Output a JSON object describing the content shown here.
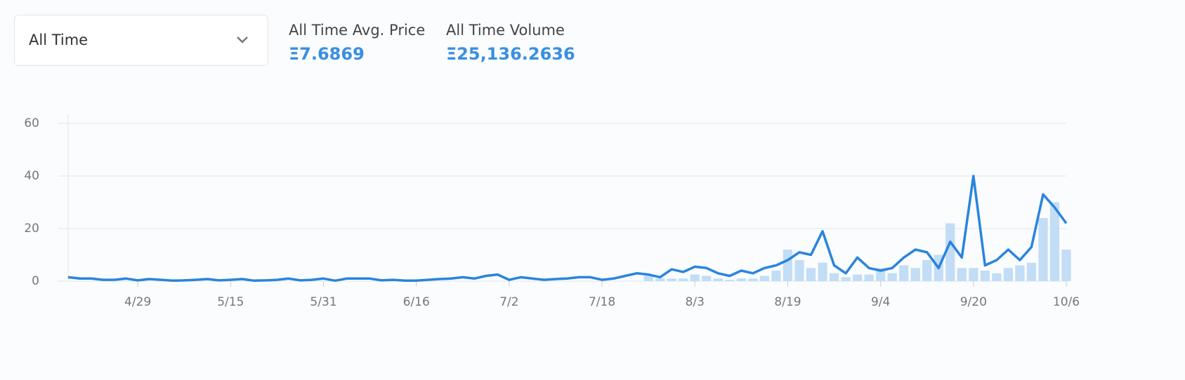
{
  "header": {
    "dropdown": "All Time",
    "stats": [
      {
        "label": "All Time Avg. Price",
        "value": "Ξ7.6869"
      },
      {
        "label": "All Time Volume",
        "value": "Ξ25,136.2636"
      }
    ]
  },
  "chart_data": {
    "type": "combo",
    "categories": [
      null,
      null,
      null,
      null,
      null,
      null,
      "4/29",
      null,
      null,
      null,
      null,
      null,
      null,
      null,
      "5/15",
      null,
      null,
      null,
      null,
      null,
      null,
      null,
      "5/31",
      null,
      null,
      null,
      null,
      null,
      null,
      null,
      "6/16",
      null,
      null,
      null,
      null,
      null,
      null,
      null,
      "7/2",
      null,
      null,
      null,
      null,
      null,
      null,
      null,
      "7/18",
      null,
      null,
      null,
      null,
      null,
      null,
      null,
      "8/3",
      null,
      null,
      null,
      null,
      null,
      null,
      null,
      "8/19",
      null,
      null,
      null,
      null,
      null,
      null,
      null,
      "9/4",
      null,
      null,
      null,
      null,
      null,
      null,
      null,
      "9/20",
      null,
      null,
      null,
      null,
      null,
      null,
      null,
      "10/6"
    ],
    "series": [
      {
        "type": "bar",
        "color": "#c2ddf5",
        "values": [
          0,
          0,
          0,
          0,
          0,
          0,
          0,
          0,
          0,
          0,
          0,
          0,
          0,
          0,
          0,
          0,
          0,
          0,
          0,
          0,
          0,
          0,
          0,
          0,
          0,
          0,
          0,
          0,
          0,
          0,
          0,
          0,
          0,
          0,
          0,
          0,
          0,
          0,
          0,
          0,
          0,
          0,
          0,
          0,
          0,
          0,
          0,
          0,
          0,
          0,
          2,
          1,
          1,
          1,
          2.5,
          2,
          1,
          0.5,
          1,
          1,
          2,
          4,
          12,
          8,
          5,
          7,
          3,
          1.5,
          2.5,
          2.5,
          5,
          3,
          6,
          5,
          8,
          10,
          22,
          5,
          5,
          4,
          3,
          5,
          6,
          7,
          24,
          30,
          12
        ]
      },
      {
        "type": "line",
        "color": "#2a84dd",
        "values": [
          1.5,
          1,
          1,
          0.5,
          0.5,
          1,
          0.3,
          0.8,
          0.5,
          0.2,
          0.3,
          0.5,
          0.8,
          0.3,
          0.5,
          0.8,
          0.2,
          0.3,
          0.5,
          1,
          0.3,
          0.5,
          1,
          0.2,
          1,
          1,
          1,
          0.3,
          0.5,
          0.2,
          0.2,
          0.5,
          0.8,
          1,
          1.5,
          1,
          2,
          2.5,
          0.5,
          1.5,
          1,
          0.5,
          0.8,
          1,
          1.5,
          1.5,
          0.5,
          1,
          2,
          3,
          2.5,
          1.5,
          4.5,
          3.5,
          5.5,
          5,
          3,
          2,
          4,
          3,
          5,
          6,
          8,
          11,
          10,
          19,
          6,
          3,
          9,
          5,
          4,
          5,
          9,
          12,
          11,
          5,
          15,
          9,
          40,
          6,
          8,
          12,
          8,
          13,
          33,
          28,
          22
        ]
      }
    ],
    "ylim": [
      0,
      60
    ],
    "yticks": [
      0,
      20,
      40,
      60
    ],
    "grid": true
  }
}
